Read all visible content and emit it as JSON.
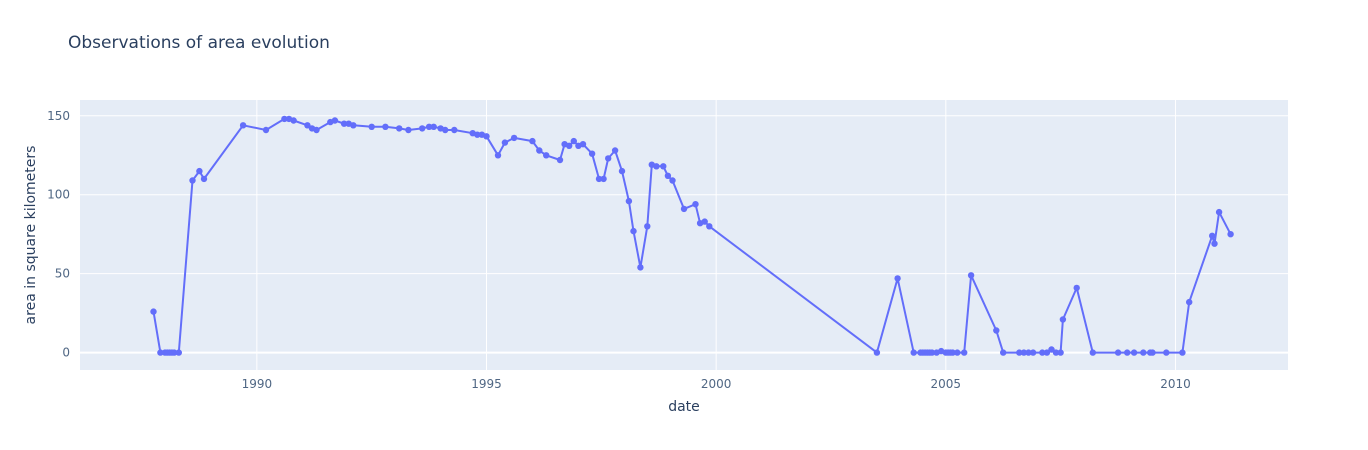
{
  "chart_data": {
    "type": "line",
    "title": "Observations of area evolution",
    "xlabel": "date",
    "ylabel": "area in square kilometers",
    "xlim": [
      1986.15,
      2012.45
    ],
    "ylim": [
      -11,
      160
    ],
    "xticks": [
      1990,
      1995,
      2000,
      2005,
      2010
    ],
    "yticks": [
      0,
      50,
      100,
      150
    ],
    "grid": true,
    "legend": "none",
    "colors": {
      "plot_bg": "#e5ecf6",
      "series": "#636efa",
      "grid": "#ffffff"
    },
    "series": [
      {
        "x": [
          1987.75,
          1987.9,
          1988.0,
          1988.05,
          1988.1,
          1988.15,
          1988.2,
          1988.3,
          1988.6,
          1988.75,
          1988.85,
          1989.7,
          1990.2,
          1990.6,
          1990.7,
          1990.8,
          1991.1,
          1991.2,
          1991.3,
          1991.6,
          1991.7,
          1991.9,
          1992.0,
          1992.1,
          1992.5,
          1992.8,
          1993.1,
          1993.3,
          1993.6,
          1993.75,
          1993.85,
          1994.0,
          1994.1,
          1994.3,
          1994.7,
          1994.8,
          1994.9,
          1995.0,
          1995.25,
          1995.4,
          1995.6,
          1996.0,
          1996.15,
          1996.3,
          1996.6,
          1996.7,
          1996.8,
          1996.9,
          1997.0,
          1997.1,
          1997.3,
          1997.45,
          1997.55,
          1997.65,
          1997.8,
          1997.95,
          1998.1,
          1998.2,
          1998.35,
          1998.5,
          1998.6,
          1998.7,
          1998.85,
          1998.95,
          1999.05,
          1999.3,
          1999.55,
          1999.65,
          1999.75,
          1999.85,
          2003.5,
          2003.95,
          2004.3,
          2004.45,
          2004.5,
          2004.55,
          2004.6,
          2004.65,
          2004.7,
          2004.8,
          2004.9,
          2005.0,
          2005.05,
          2005.1,
          2005.15,
          2005.25,
          2005.4,
          2005.55,
          2006.1,
          2006.25,
          2006.6,
          2006.7,
          2006.8,
          2006.9,
          2007.1,
          2007.2,
          2007.3,
          2007.4,
          2007.5,
          2007.55,
          2007.85,
          2008.2,
          2008.75,
          2008.95,
          2009.1,
          2009.3,
          2009.45,
          2009.5,
          2009.8,
          2010.15,
          2010.3,
          2010.8,
          2010.85,
          2010.95,
          2011.2
        ],
        "y": [
          26,
          0,
          0,
          0,
          0,
          0,
          0,
          0,
          109,
          115,
          110,
          144,
          141,
          148,
          148,
          147,
          144,
          142,
          141,
          146,
          147,
          145,
          145,
          144,
          143,
          143,
          142,
          141,
          142,
          143,
          143,
          142,
          141,
          141,
          139,
          138,
          138,
          137,
          125,
          133,
          136,
          134,
          128,
          125,
          122,
          132,
          131,
          134,
          131,
          132,
          126,
          110,
          110,
          123,
          128,
          115,
          96,
          77,
          54,
          80,
          119,
          118,
          118,
          112,
          109,
          91,
          94,
          82,
          83,
          80,
          0,
          47,
          0,
          0,
          0,
          0,
          0,
          0,
          0,
          0,
          1,
          0,
          0,
          0,
          0,
          0,
          0,
          49,
          14,
          0,
          0,
          0,
          0,
          0,
          0,
          0,
          2,
          0,
          0,
          21,
          41,
          0,
          0,
          0,
          0,
          0,
          0,
          0,
          0,
          0,
          32,
          74,
          69,
          89,
          75
        ]
      }
    ]
  }
}
